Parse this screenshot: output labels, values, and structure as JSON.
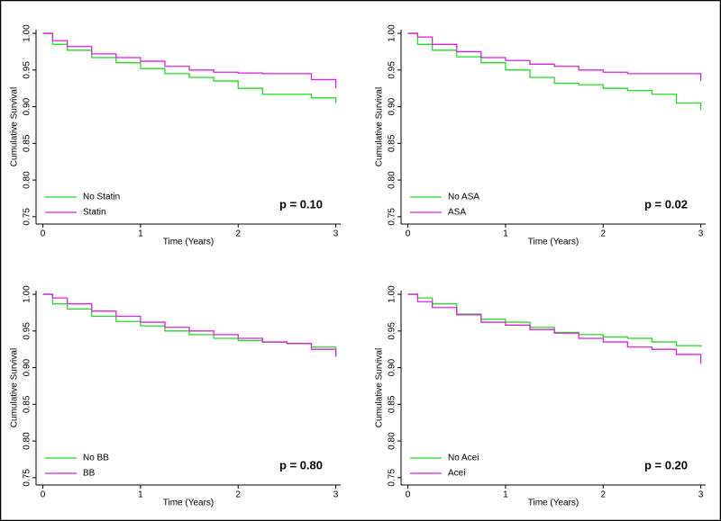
{
  "chart_data": [
    {
      "type": "line",
      "step": true,
      "xlabel": "Time (Years)",
      "ylabel": "Cumulative Survival",
      "annotation": "p = 0.10",
      "legend": "lower left",
      "x": [
        0,
        0.1,
        0.25,
        0.5,
        0.75,
        1,
        1.25,
        1.5,
        1.75,
        2,
        2.25,
        2.5,
        2.75,
        3
      ],
      "series": [
        {
          "name": "No Statin",
          "color": "#22dd22",
          "values": [
            1.0,
            0.985,
            0.977,
            0.967,
            0.96,
            0.952,
            0.945,
            0.94,
            0.935,
            0.925,
            0.917,
            0.917,
            0.912,
            0.905
          ]
        },
        {
          "name": "Statin",
          "color": "#dd22dd",
          "values": [
            1.0,
            0.99,
            0.982,
            0.972,
            0.967,
            0.962,
            0.955,
            0.95,
            0.947,
            0.946,
            0.945,
            0.945,
            0.937,
            0.925
          ]
        }
      ],
      "xlim": [
        -0.07,
        3.05
      ],
      "xticks": [
        0,
        1,
        2,
        3
      ],
      "ylim": [
        0.74,
        1.005
      ],
      "yticks": [
        0.75,
        {
          "value": 0.8,
          "label": "0.80"
        },
        0.85,
        {
          "value": 0.9,
          "label": "0.90"
        },
        0.95,
        {
          "value": 1,
          "label": "1.00"
        }
      ]
    },
    {
      "type": "line",
      "step": true,
      "xlabel": "Time (Years)",
      "ylabel": "Cumulative Survival",
      "annotation": "p = 0.02",
      "legend": "lower left",
      "x": [
        0,
        0.1,
        0.25,
        0.5,
        0.75,
        1,
        1.25,
        1.5,
        1.75,
        2,
        2.25,
        2.5,
        2.75,
        3
      ],
      "series": [
        {
          "name": "No ASA",
          "color": "#22dd22",
          "values": [
            1.0,
            0.985,
            0.977,
            0.968,
            0.96,
            0.95,
            0.94,
            0.932,
            0.93,
            0.925,
            0.922,
            0.917,
            0.905,
            0.895
          ]
        },
        {
          "name": "ASA",
          "color": "#dd22dd",
          "values": [
            1.0,
            0.995,
            0.985,
            0.975,
            0.967,
            0.963,
            0.958,
            0.955,
            0.95,
            0.947,
            0.945,
            0.945,
            0.945,
            0.935
          ]
        }
      ],
      "xlim": [
        -0.07,
        3.05
      ],
      "xticks": [
        0,
        1,
        2,
        3
      ],
      "ylim": [
        0.74,
        1.005
      ],
      "yticks": [
        0.75,
        {
          "value": 0.8,
          "label": "0.80"
        },
        0.85,
        {
          "value": 0.9,
          "label": "0.90"
        },
        0.95,
        {
          "value": 1,
          "label": "1.00"
        }
      ]
    },
    {
      "type": "line",
      "step": true,
      "xlabel": "Time (Years)",
      "ylabel": "Cumulative Survival",
      "annotation": "p = 0.80",
      "legend": "lower left",
      "x": [
        0,
        0.1,
        0.25,
        0.5,
        0.75,
        1,
        1.25,
        1.5,
        1.75,
        2,
        2.25,
        2.5,
        2.75,
        3
      ],
      "series": [
        {
          "name": "No BB",
          "color": "#22dd22",
          "values": [
            1.0,
            0.987,
            0.98,
            0.97,
            0.963,
            0.957,
            0.95,
            0.945,
            0.94,
            0.937,
            0.935,
            0.933,
            0.928,
            0.918
          ]
        },
        {
          "name": "BB",
          "color": "#dd22dd",
          "values": [
            1.0,
            0.995,
            0.987,
            0.977,
            0.97,
            0.962,
            0.955,
            0.95,
            0.945,
            0.94,
            0.935,
            0.933,
            0.925,
            0.915
          ]
        }
      ],
      "xlim": [
        -0.07,
        3.05
      ],
      "xticks": [
        0,
        1,
        2,
        3
      ],
      "ylim": [
        0.74,
        1.005
      ],
      "yticks": [
        0.75,
        {
          "value": 0.8,
          "label": "0.80"
        },
        0.85,
        {
          "value": 0.9,
          "label": "0.90"
        },
        0.95,
        {
          "value": 1,
          "label": "1.00"
        }
      ]
    },
    {
      "type": "line",
      "step": true,
      "xlabel": "Time (Years)",
      "ylabel": "Cumulative Survival",
      "annotation": "p = 0.20",
      "legend": "lower left",
      "x": [
        0,
        0.1,
        0.25,
        0.5,
        0.75,
        1,
        1.25,
        1.5,
        1.75,
        2,
        2.25,
        2.5,
        2.75,
        3
      ],
      "series": [
        {
          "name": "No Acei",
          "color": "#22dd22",
          "values": [
            1.0,
            0.995,
            0.987,
            0.973,
            0.966,
            0.962,
            0.955,
            0.948,
            0.945,
            0.942,
            0.94,
            0.935,
            0.93,
            0.928
          ]
        },
        {
          "name": "Acei",
          "color": "#dd22dd",
          "values": [
            1.0,
            0.99,
            0.982,
            0.972,
            0.962,
            0.958,
            0.952,
            0.947,
            0.94,
            0.935,
            0.928,
            0.925,
            0.918,
            0.905
          ]
        }
      ],
      "xlim": [
        -0.07,
        3.05
      ],
      "xticks": [
        0,
        1,
        2,
        3
      ],
      "ylim": [
        0.74,
        1.005
      ],
      "yticks": [
        0.75,
        {
          "value": 0.8,
          "label": "0.80"
        },
        0.85,
        {
          "value": 0.9,
          "label": "0.90"
        },
        0.95,
        {
          "value": 1,
          "label": "1.00"
        }
      ]
    }
  ]
}
